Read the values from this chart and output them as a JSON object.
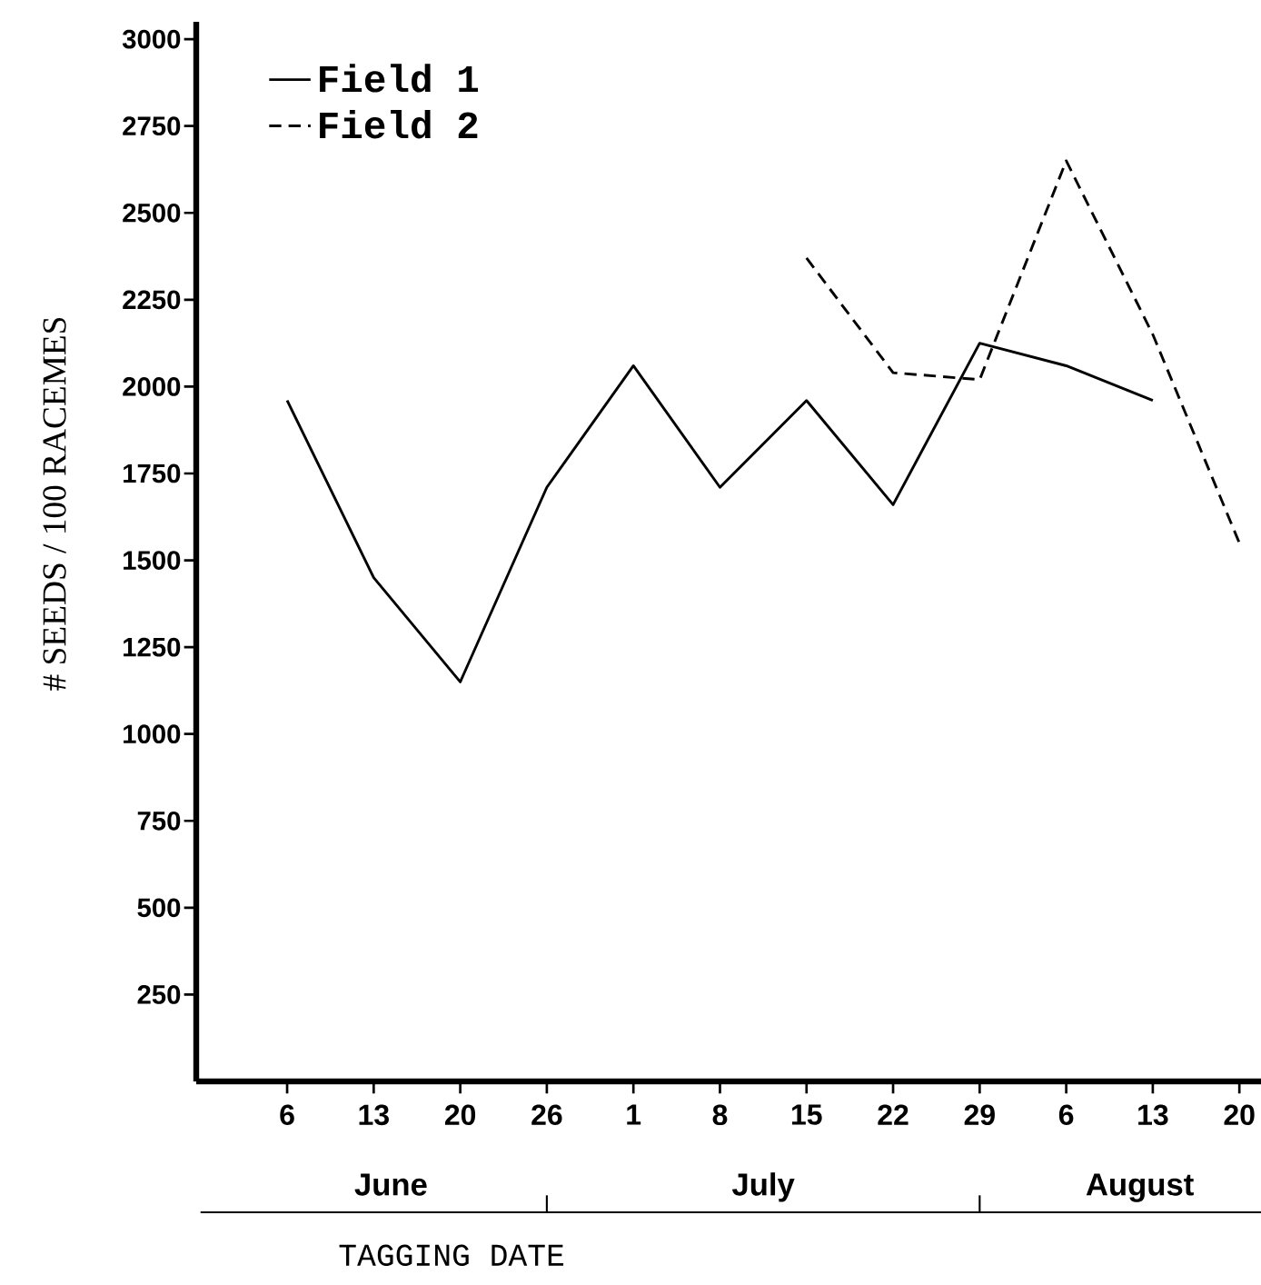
{
  "chart_data": {
    "type": "line",
    "xlabel": "TAGGING DATE",
    "ylabel": "# SEEDS / 100 RACEMES",
    "categories": [
      "6",
      "13",
      "20",
      "26",
      "1",
      "8",
      "15",
      "22",
      "29",
      "6",
      "13",
      "20"
    ],
    "series": [
      {
        "name": "Field 1",
        "color": "#000000",
        "line_style": "solid",
        "values": [
          1960,
          1450,
          1150,
          1710,
          2060,
          1710,
          1960,
          1660,
          2125,
          2060,
          1960,
          null
        ]
      },
      {
        "name": "Field 2",
        "color": "#000000",
        "line_style": "dashed",
        "values": [
          null,
          null,
          null,
          null,
          null,
          null,
          2370,
          2040,
          2020,
          2650,
          2150,
          1550
        ]
      }
    ],
    "ylim": [
      0,
      3050
    ],
    "yticks": [
      250,
      500,
      750,
      1000,
      1250,
      1500,
      1750,
      2000,
      2250,
      2500,
      2750,
      3000
    ],
    "annotations": [
      "June",
      "July",
      "August"
    ],
    "legend": "top left",
    "grid": false,
    "marker": "none"
  }
}
